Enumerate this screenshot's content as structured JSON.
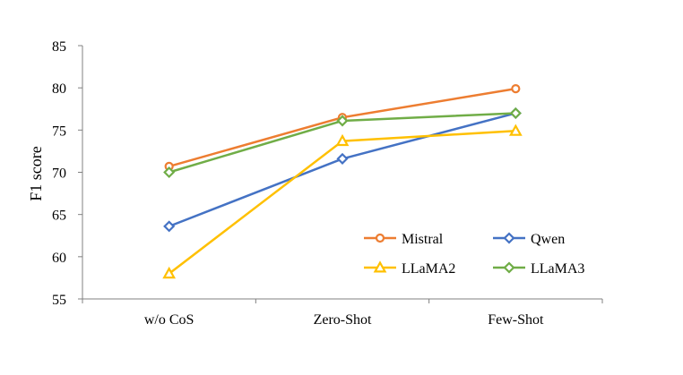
{
  "chart_data": {
    "type": "line",
    "title": "",
    "xlabel": "",
    "ylabel": "F1 score",
    "categories": [
      "w/o CoS",
      "Zero-Shot",
      "Few-Shot"
    ],
    "ylim": [
      55,
      85
    ],
    "yticks": [
      55,
      60,
      65,
      70,
      75,
      80,
      85
    ],
    "grid": false,
    "legend_position": "bottom-right",
    "series": [
      {
        "name": "Mistral",
        "values": [
          70.7,
          76.5,
          79.9
        ],
        "color": "#ED7D31",
        "marker": "circle"
      },
      {
        "name": "Qwen",
        "values": [
          63.6,
          71.6,
          77.0
        ],
        "color": "#4472C4",
        "marker": "diamond"
      },
      {
        "name": "LLaMA2",
        "values": [
          58.0,
          73.7,
          74.9
        ],
        "color": "#FFC000",
        "marker": "triangle"
      },
      {
        "name": "LLaMA3",
        "values": [
          70.0,
          76.1,
          77.0
        ],
        "color": "#70AD47",
        "marker": "diamond"
      }
    ]
  }
}
